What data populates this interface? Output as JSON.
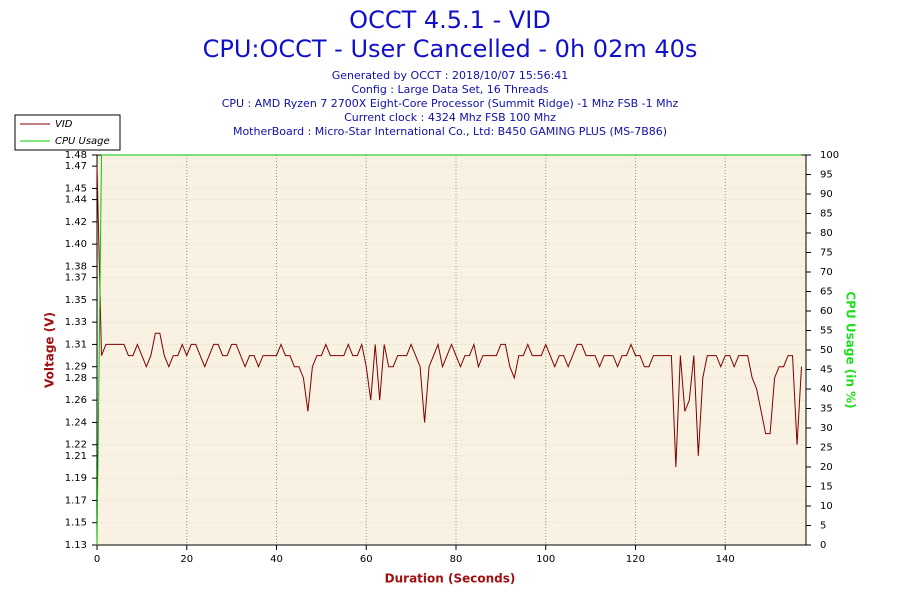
{
  "chart_data": {
    "type": "line",
    "title": "OCCT 4.5.1 - VID",
    "subtitle": "CPU:OCCT - User Cancelled - 0h 02m 40s",
    "info": [
      "Generated by OCCT : 2018/10/07 15:56:41",
      "Config : Large Data Set, 16 Threads",
      "CPU : AMD Ryzen 7 2700X Eight-Core Processor (Summit Ridge) -1 Mhz FSB -1 Mhz",
      "Current clock : 4324 Mhz FSB 100 Mhz",
      "MotherBoard : Micro-Star International Co., Ltd: B450 GAMING PLUS (MS-7B86)"
    ],
    "xlabel": "Duration (Seconds)",
    "ylabel": "Voltage (V)",
    "y2label": "CPU Usage (in %)",
    "xlim": [
      0,
      158
    ],
    "xticks": [
      0,
      20,
      40,
      60,
      80,
      100,
      120,
      140
    ],
    "ylim": [
      1.13,
      1.48
    ],
    "yticks": [
      1.13,
      1.15,
      1.17,
      1.19,
      1.21,
      1.22,
      1.24,
      1.26,
      1.28,
      1.29,
      1.31,
      1.33,
      1.35,
      1.37,
      1.38,
      {
        "value": 1.4,
        "label": "1.40"
      },
      1.42,
      1.44,
      1.45,
      1.47,
      1.48
    ],
    "y2lim": [
      0,
      100
    ],
    "y2ticks": [
      0,
      5,
      10,
      15,
      20,
      25,
      30,
      35,
      40,
      45,
      50,
      55,
      60,
      65,
      70,
      75,
      80,
      85,
      90,
      95,
      100
    ],
    "grid": true,
    "legend": "top-left",
    "x": [
      0,
      1,
      2,
      3,
      4,
      5,
      6,
      7,
      8,
      9,
      10,
      11,
      12,
      13,
      14,
      15,
      16,
      17,
      18,
      19,
      20,
      21,
      22,
      23,
      24,
      25,
      26,
      27,
      28,
      29,
      30,
      31,
      32,
      33,
      34,
      35,
      36,
      37,
      38,
      39,
      40,
      41,
      42,
      43,
      44,
      45,
      46,
      47,
      48,
      49,
      50,
      51,
      52,
      53,
      54,
      55,
      56,
      57,
      58,
      59,
      60,
      61,
      62,
      63,
      64,
      65,
      66,
      67,
      68,
      69,
      70,
      71,
      72,
      73,
      74,
      75,
      76,
      77,
      78,
      79,
      80,
      81,
      82,
      83,
      84,
      85,
      86,
      87,
      88,
      89,
      90,
      91,
      92,
      93,
      94,
      95,
      96,
      97,
      98,
      99,
      100,
      101,
      102,
      103,
      104,
      105,
      106,
      107,
      108,
      109,
      110,
      111,
      112,
      113,
      114,
      115,
      116,
      117,
      118,
      119,
      120,
      121,
      122,
      123,
      124,
      125,
      126,
      127,
      128,
      129,
      130,
      131,
      132,
      133,
      134,
      135,
      136,
      137,
      138,
      139,
      140,
      141,
      142,
      143,
      144,
      145,
      146,
      147,
      148,
      149,
      150,
      151,
      152,
      153,
      154,
      155,
      156,
      157
    ],
    "series": [
      {
        "name": "VID",
        "color": "#800000",
        "values": [
          1.47,
          1.3,
          1.31,
          1.31,
          1.31,
          1.31,
          1.31,
          1.3,
          1.3,
          1.31,
          1.3,
          1.29,
          1.3,
          1.32,
          1.32,
          1.3,
          1.29,
          1.3,
          1.3,
          1.31,
          1.3,
          1.31,
          1.31,
          1.3,
          1.29,
          1.3,
          1.31,
          1.31,
          1.3,
          1.3,
          1.31,
          1.31,
          1.3,
          1.29,
          1.3,
          1.3,
          1.29,
          1.3,
          1.3,
          1.3,
          1.3,
          1.31,
          1.3,
          1.3,
          1.29,
          1.29,
          1.28,
          1.25,
          1.29,
          1.3,
          1.3,
          1.31,
          1.3,
          1.3,
          1.3,
          1.3,
          1.31,
          1.3,
          1.3,
          1.31,
          1.29,
          1.26,
          1.31,
          1.26,
          1.31,
          1.29,
          1.29,
          1.3,
          1.3,
          1.3,
          1.31,
          1.3,
          1.29,
          1.24,
          1.29,
          1.3,
          1.31,
          1.29,
          1.3,
          1.31,
          1.3,
          1.29,
          1.3,
          1.3,
          1.31,
          1.29,
          1.3,
          1.3,
          1.3,
          1.3,
          1.31,
          1.31,
          1.29,
          1.28,
          1.3,
          1.3,
          1.31,
          1.3,
          1.3,
          1.3,
          1.31,
          1.3,
          1.29,
          1.3,
          1.3,
          1.29,
          1.3,
          1.31,
          1.31,
          1.3,
          1.3,
          1.3,
          1.29,
          1.3,
          1.3,
          1.3,
          1.29,
          1.3,
          1.3,
          1.31,
          1.3,
          1.3,
          1.29,
          1.29,
          1.3,
          1.3,
          1.3,
          1.3,
          1.3,
          1.2,
          1.3,
          1.25,
          1.26,
          1.3,
          1.21,
          1.28,
          1.3,
          1.3,
          1.3,
          1.29,
          1.3,
          1.3,
          1.29,
          1.3,
          1.3,
          1.3,
          1.28,
          1.27,
          1.25,
          1.23,
          1.23,
          1.28,
          1.29,
          1.29,
          1.3,
          1.3,
          1.22,
          1.29
        ]
      },
      {
        "name": "CPU Usage",
        "color": "#00cc00",
        "axis": "y2",
        "values": [
          0,
          100,
          100,
          100,
          100,
          100,
          100,
          100,
          100,
          100,
          100,
          100,
          100,
          100,
          100,
          100,
          100,
          100,
          100,
          100,
          100,
          100,
          100,
          100,
          100,
          100,
          100,
          100,
          100,
          100,
          100,
          100,
          100,
          100,
          100,
          100,
          100,
          100,
          100,
          100,
          100,
          100,
          100,
          100,
          100,
          100,
          100,
          100,
          100,
          100,
          100,
          100,
          100,
          100,
          100,
          100,
          100,
          100,
          100,
          100,
          100,
          100,
          100,
          100,
          100,
          100,
          100,
          100,
          100,
          100,
          100,
          100,
          100,
          100,
          100,
          100,
          100,
          100,
          100,
          100,
          100,
          100,
          100,
          100,
          100,
          100,
          100,
          100,
          100,
          100,
          100,
          100,
          100,
          100,
          100,
          100,
          100,
          100,
          100,
          100,
          100,
          100,
          100,
          100,
          100,
          100,
          100,
          100,
          100,
          100,
          100,
          100,
          100,
          100,
          100,
          100,
          100,
          100,
          100,
          100,
          100,
          100,
          100,
          100,
          100,
          100,
          100,
          100,
          100,
          100,
          100,
          100,
          100,
          100,
          100,
          100,
          100,
          100,
          100,
          100,
          100,
          100,
          100,
          100,
          100,
          100,
          100,
          100,
          100,
          100,
          100,
          100,
          100,
          100,
          100,
          100,
          100,
          100
        ]
      }
    ]
  }
}
